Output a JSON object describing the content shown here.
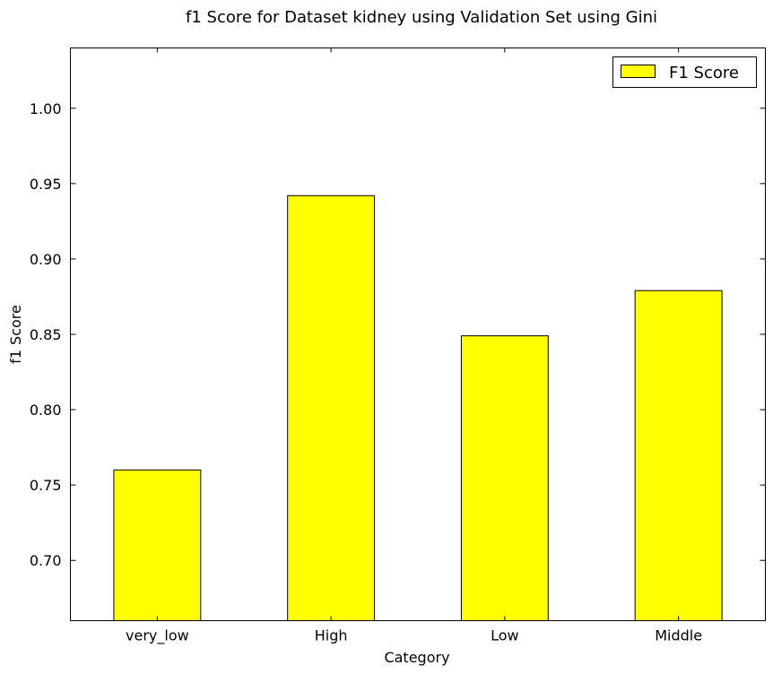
{
  "chart_data": {
    "type": "bar",
    "title": "f1 Score for Dataset kidney using Validation Set using Gini",
    "xlabel": "Category",
    "ylabel": "f1 Score",
    "categories": [
      "very_low",
      "High",
      "Low",
      "Middle"
    ],
    "series": [
      {
        "name": "F1 Score",
        "values": [
          0.76,
          0.942,
          0.849,
          0.879
        ]
      }
    ],
    "ylim": [
      0.66,
      1.04
    ],
    "yticks": [
      0.7,
      0.75,
      0.8,
      0.85,
      0.9,
      0.95,
      1.0
    ],
    "ytick_labels": [
      "0.70",
      "0.75",
      "0.80",
      "0.85",
      "0.90",
      "0.95",
      "1.00"
    ],
    "grid": false,
    "legend_position": "top-right",
    "bar_color": "#ffff00",
    "edge_color": "#000000"
  }
}
